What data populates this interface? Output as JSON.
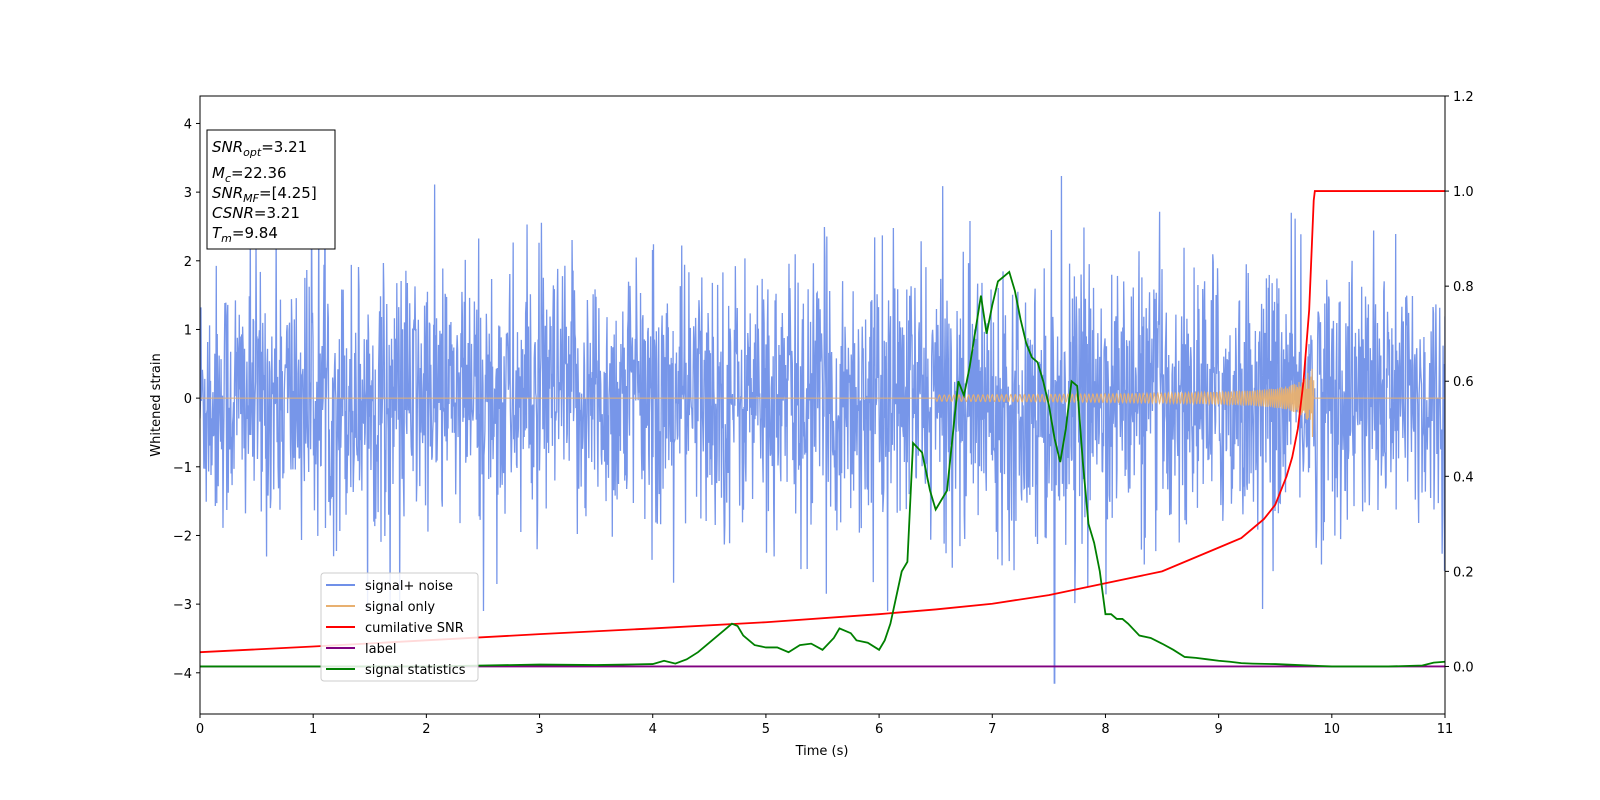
{
  "chart_data": {
    "type": "line",
    "title": "",
    "xlabel": "Time (s)",
    "ylabel": "Whitened strain",
    "xlim": [
      0,
      11
    ],
    "ylim": [
      -4.6,
      4.4
    ],
    "y2lim": [
      -0.1,
      1.2
    ],
    "xticks": [
      "0",
      "1",
      "2",
      "3",
      "4",
      "5",
      "6",
      "7",
      "8",
      "9",
      "10",
      "11"
    ],
    "yticks": [
      "4",
      "3",
      "2",
      "1",
      "0",
      "−1",
      "−2",
      "−3",
      "−4"
    ],
    "y2ticks": [
      "0.0",
      "0.2",
      "0.4",
      "0.6",
      "0.8",
      "1.0",
      "1.2"
    ],
    "grid": false,
    "legend_position": "lower-left",
    "info_box": {
      "snr_opt": "=3.21",
      "mc": "=22.36",
      "snr_mf": "=[4.25]",
      "csnr": "=3.21",
      "tm": "=9.84",
      "labels": {
        "snr_opt_base": "SNR",
        "snr_opt_sub": "opt",
        "mc_base": "M",
        "mc_sub": "c",
        "snr_mf_base": "SNR",
        "snr_mf_sub": "MF",
        "csnr_base": "CSNR",
        "tm_base": "T",
        "tm_sub": "m"
      }
    },
    "series": [
      {
        "name": "signal+ noise",
        "axis": "left",
        "color": "#7090e8",
        "description_values": {
          "baseline": 0,
          "typical_amplitude": 2.0,
          "max": 3.6,
          "min": -4.15,
          "min_at": 7.55
        }
      },
      {
        "name": "signal only",
        "axis": "left",
        "color": "#e8b070",
        "chirp": {
          "start": 6.5,
          "end": 9.84,
          "peak_amplitude": 0.6
        }
      },
      {
        "name": "cumilative SNR",
        "axis": "right",
        "color": "#ff0000",
        "x": [
          0,
          1,
          2,
          3,
          4,
          5,
          6,
          6.5,
          7,
          7.5,
          8,
          8.5,
          9,
          9.2,
          9.4,
          9.5,
          9.6,
          9.65,
          9.7,
          9.75,
          9.8,
          9.84,
          9.85,
          11
        ],
        "values": [
          0.03,
          0.042,
          0.055,
          0.068,
          0.08,
          0.093,
          0.11,
          0.12,
          0.132,
          0.15,
          0.175,
          0.2,
          0.25,
          0.27,
          0.31,
          0.34,
          0.4,
          0.44,
          0.5,
          0.6,
          0.75,
          0.98,
          1.0,
          1.0
        ]
      },
      {
        "name": "label",
        "axis": "right",
        "color": "#800080",
        "x": [
          0,
          11
        ],
        "values": [
          0.0,
          0.0
        ]
      },
      {
        "name": "signal statistics",
        "axis": "right",
        "color": "#008000",
        "x": [
          0,
          1,
          2,
          2.5,
          3,
          3.5,
          4,
          4.1,
          4.2,
          4.3,
          4.4,
          4.5,
          4.6,
          4.7,
          4.75,
          4.8,
          4.9,
          5.0,
          5.1,
          5.2,
          5.3,
          5.4,
          5.5,
          5.6,
          5.65,
          5.75,
          5.8,
          5.9,
          6.0,
          6.05,
          6.1,
          6.2,
          6.25,
          6.3,
          6.38,
          6.45,
          6.5,
          6.55,
          6.6,
          6.7,
          6.75,
          6.8,
          6.9,
          6.95,
          7.0,
          7.05,
          7.1,
          7.15,
          7.2,
          7.25,
          7.3,
          7.35,
          7.4,
          7.45,
          7.5,
          7.55,
          7.6,
          7.65,
          7.7,
          7.75,
          7.8,
          7.85,
          7.9,
          7.95,
          8.0,
          8.05,
          8.1,
          8.15,
          8.2,
          8.3,
          8.4,
          8.5,
          8.6,
          8.7,
          8.8,
          8.9,
          9.0,
          9.1,
          9.2,
          9.3,
          9.5,
          9.6,
          9.7,
          9.8,
          9.9,
          10.0,
          10.2,
          10.5,
          10.8,
          10.9,
          11.0
        ],
        "values": [
          0.0,
          0.0,
          0.0,
          0.002,
          0.004,
          0.003,
          0.005,
          0.012,
          0.006,
          0.015,
          0.03,
          0.05,
          0.07,
          0.09,
          0.085,
          0.065,
          0.045,
          0.04,
          0.04,
          0.03,
          0.045,
          0.048,
          0.035,
          0.06,
          0.08,
          0.07,
          0.055,
          0.05,
          0.035,
          0.055,
          0.09,
          0.2,
          0.22,
          0.47,
          0.45,
          0.37,
          0.33,
          0.35,
          0.37,
          0.6,
          0.57,
          0.63,
          0.78,
          0.7,
          0.76,
          0.81,
          0.82,
          0.83,
          0.79,
          0.73,
          0.68,
          0.65,
          0.64,
          0.6,
          0.55,
          0.48,
          0.43,
          0.5,
          0.6,
          0.59,
          0.43,
          0.3,
          0.26,
          0.2,
          0.11,
          0.11,
          0.1,
          0.1,
          0.09,
          0.065,
          0.06,
          0.048,
          0.035,
          0.02,
          0.018,
          0.015,
          0.012,
          0.01,
          0.007,
          0.006,
          0.005,
          0.004,
          0.003,
          0.002,
          0.001,
          0.0,
          0.0,
          0.0,
          0.002,
          0.008,
          0.01
        ]
      }
    ]
  }
}
